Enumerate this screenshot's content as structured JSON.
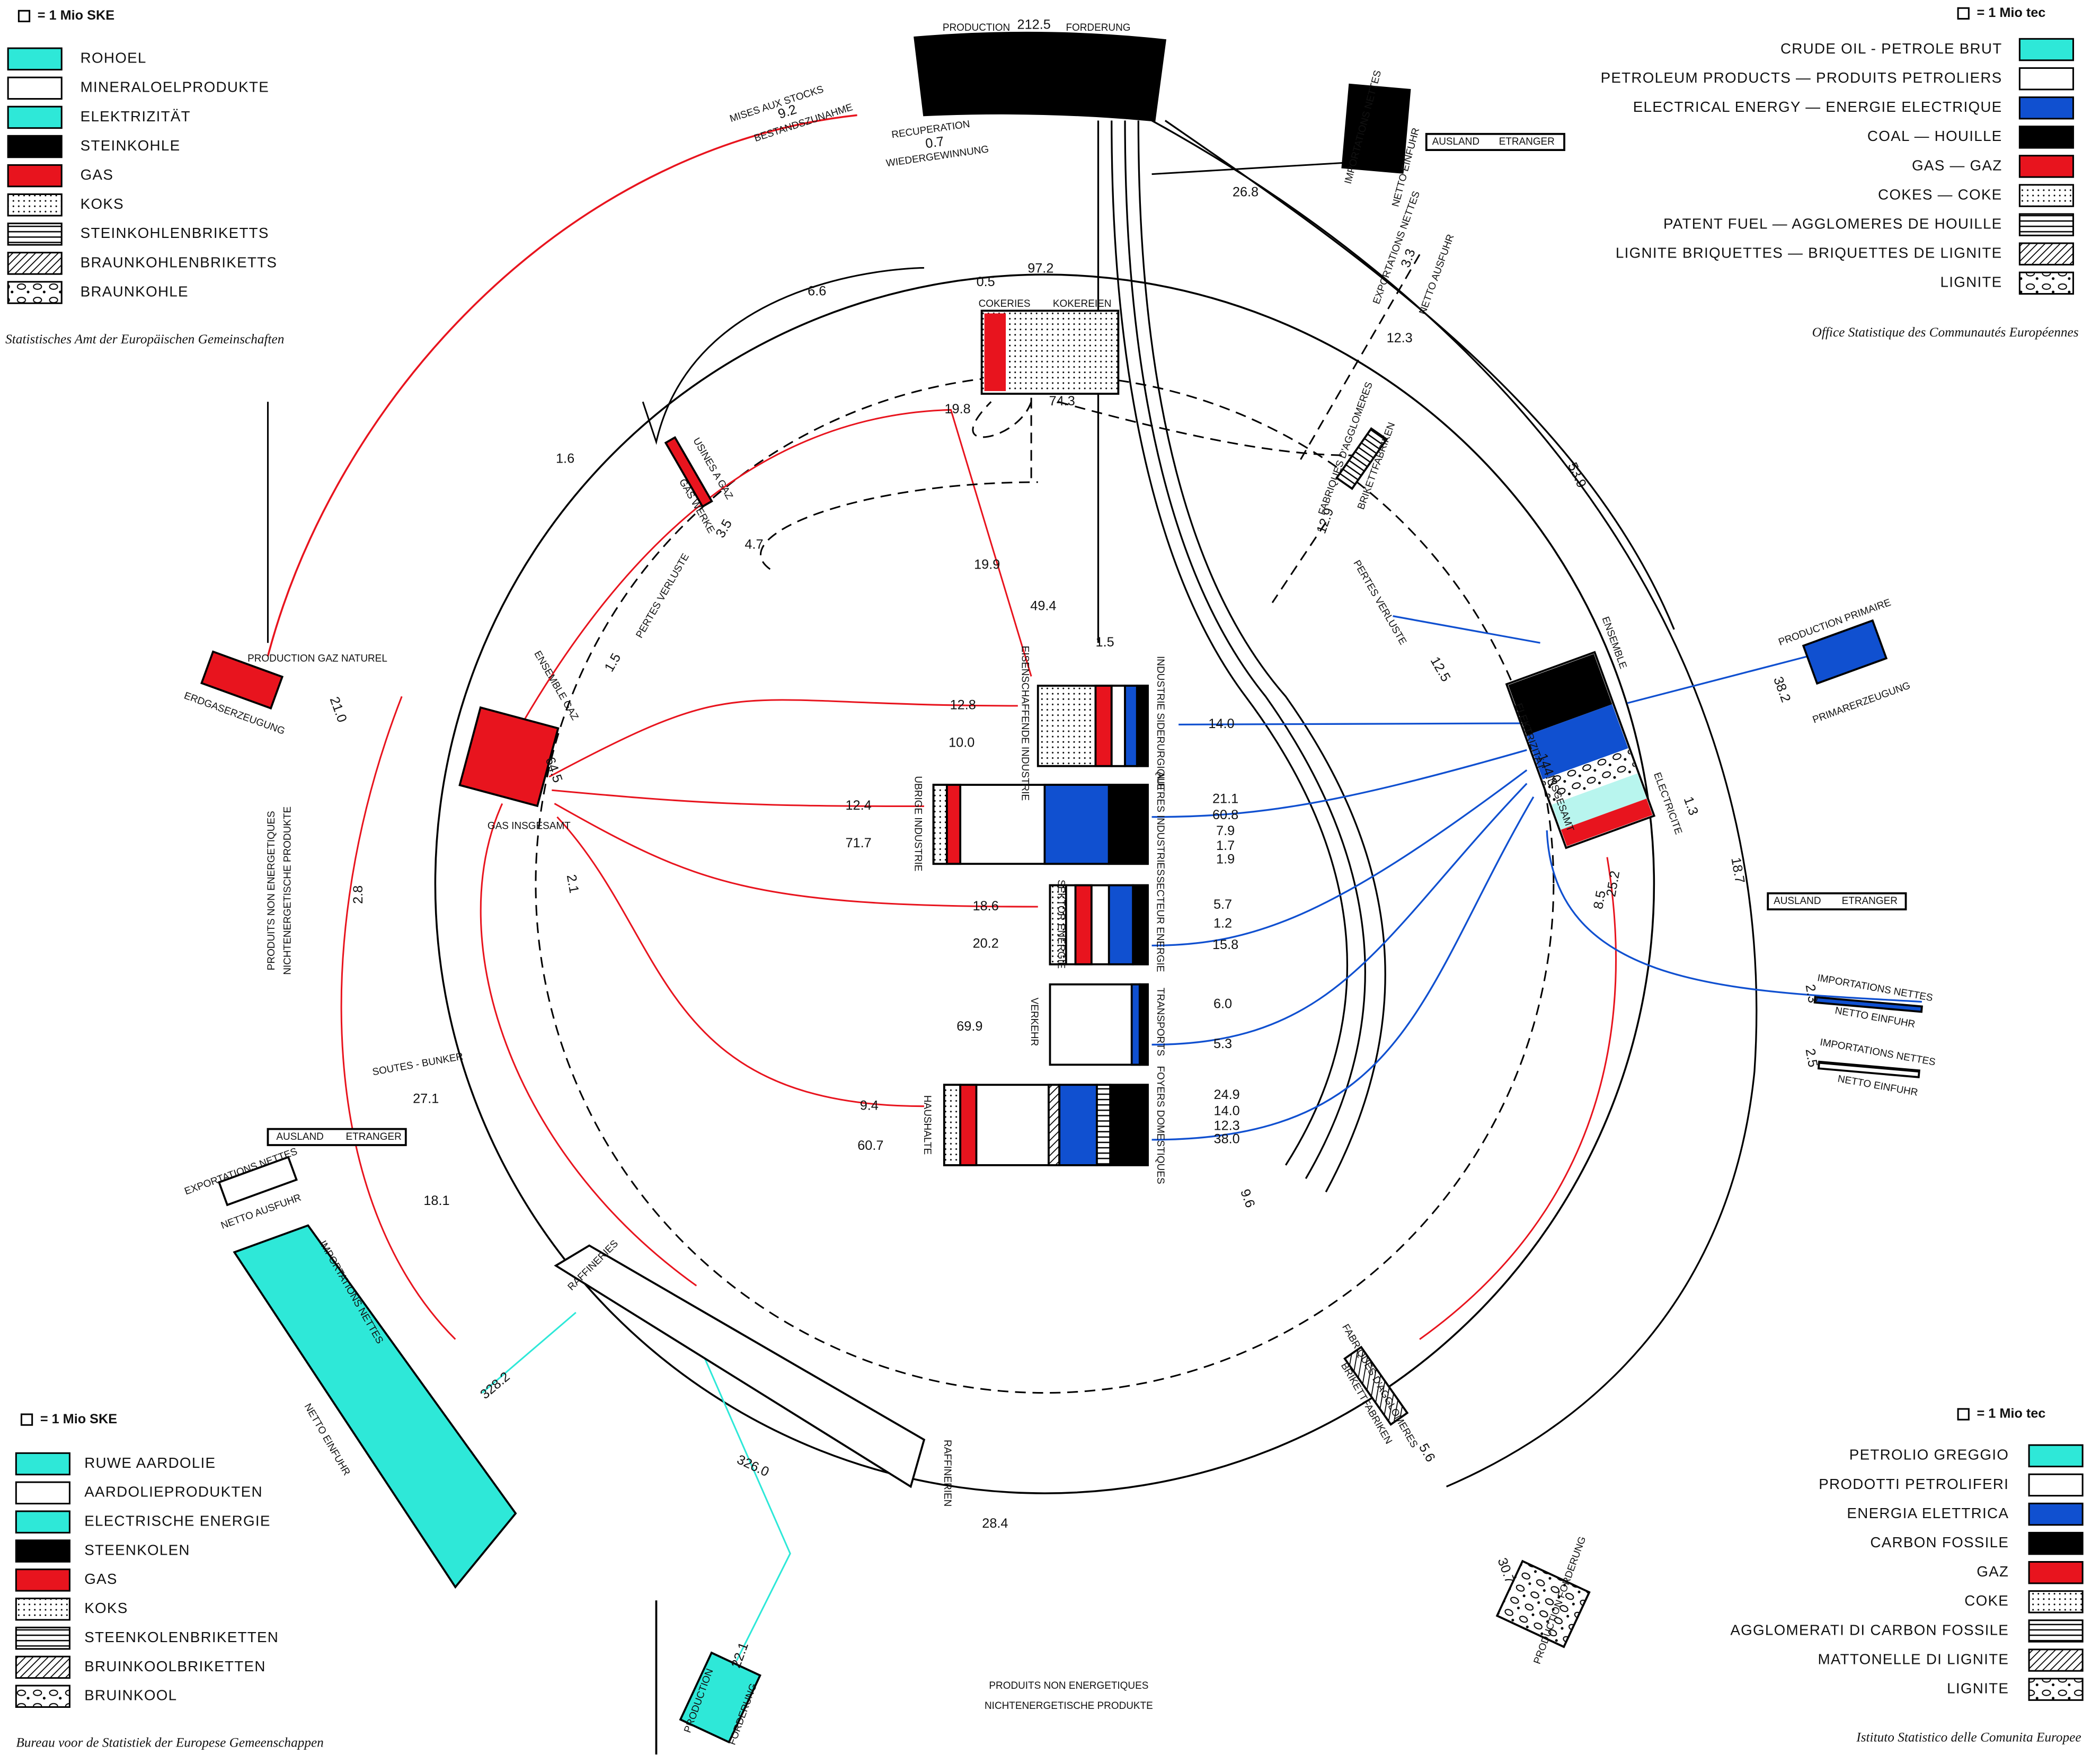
{
  "legends": {
    "de": {
      "unit": "= 1 Mio SKE",
      "items": [
        "ROHOEL",
        "MINERALOELPRODUKTE",
        "ELEKTRIZITÄT",
        "STEINKOHLE",
        "GAS",
        "KOKS",
        "STEINKOHLENBRIKETTS",
        "BRAUNKOHLENBRIKETTS",
        "BRAUNKOHLE"
      ]
    },
    "fr": {
      "unit": "= 1 Mio tec",
      "items": [
        "CRUDE OIL - PETROLE BRUT",
        "PETROLEUM PRODUCTS — PRODUITS PETROLIERS",
        "ELECTRICAL ENERGY — ENERGIE ELECTRIQUE",
        "COAL — HOUILLE",
        "GAS — GAZ",
        "COKES — COKE",
        "PATENT FUEL — AGGLOMERES DE HOUILLE",
        "LIGNITE BRIQUETTES — BRIQUETTES DE LIGNITE",
        "LIGNITE"
      ]
    },
    "nl": {
      "unit": "= 1 Mio SKE",
      "items": [
        "RUWE AARDOLIE",
        "AARDOLIEPRODUKTEN",
        "ELECTRISCHE ENERGIE",
        "STEENKOLEN",
        "GAS",
        "KOKS",
        "STEENKOLENBRIKETTEN",
        "BRUINKOOLBRIKETTEN",
        "BRUINKOOL"
      ]
    },
    "it": {
      "unit": "= 1 Mio tec",
      "items": [
        "PETROLIO GREGGIO",
        "PRODOTTI PETROLIFERI",
        "ENERGIA ELETTRICA",
        "CARBON FOSSILE",
        "GAZ",
        "COKE",
        "AGGLOMERATI DI CARBON FOSSILE",
        "MATTONELLE DI LIGNITE",
        "LIGNITE"
      ]
    }
  },
  "sources": {
    "de": "Statistisches Amt der Europäischen Gemeinschaften",
    "fr": "Office Statistique des Communautés Européennes",
    "nl": "Bureau voor de Statistiek der Europese Gemeenschappen",
    "it": "Istituto Statistico delle Comunita Europee"
  },
  "labels": [
    "PRODUCTION",
    "212.5",
    "FORDERUNG",
    "MISES AUX STOCKS",
    "9.2",
    "BESTANDSZUNAHME",
    "RECUPERATION",
    "0.7",
    "WIEDERGEWINNUNG",
    "IMPORTATIONS NETTES",
    "NETTO EINFUHR",
    "AUSLAND",
    "ETRANGER",
    "26.8",
    "EXPORTATIONS NETTES",
    "3.3",
    "NETTO AUSFUHR",
    "12.3",
    "6.6",
    "0.5",
    "97.2",
    "COKERIES",
    "KOKEREIEN",
    "19.8",
    "74.3",
    "FABRIQUES D'AGGLOMERES",
    "BRIKETTFABRIKEN",
    "12.9",
    "53.9",
    "1.6",
    "USINES A GAZ",
    "GAS WERKE",
    "3.5",
    "4.7",
    "PERTES VERLUSTE",
    "19.9",
    "49.4",
    "1.5",
    "PERTES VERLUSTE",
    "12.5",
    "ENSEMBLE",
    "ELEKTRIZITÄT",
    "144.3",
    "INSGESAMT",
    "ELECTRICITE",
    "1.3",
    "PRODUCTION PRIMAIRE",
    "38.2",
    "PRIMARERZEUGUNG",
    "PRODUCTION GAZ NATUREL",
    "ERDGASERZEUGUNG",
    "21.0",
    "ENSEMBLE GAZ",
    "1.5",
    "64.5",
    "GAS INSGESAMT",
    "2.1",
    "PRODUITS NON ENERGETIQUES",
    "NICHTENERGETISCHE PRODUKTE",
    "2.8",
    "12.8",
    "10.0",
    "EISENSCHAFFENDE INDUSTRIE",
    "INDUSTRIE SIDERURGIQUE",
    "14.0",
    "12.4",
    "71.7",
    "UBRIGE INDUSTRIE",
    "AUTRES INDUSTRIES",
    "21.1",
    "60.8",
    "7.9",
    "1.7",
    "1.9",
    "18.6",
    "20.2",
    "SEKTOR ENERGIE",
    "SECTEUR ENERGIE",
    "5.7",
    "1.2",
    "15.8",
    "69.9",
    "VERKEHR",
    "TRANSPORTS",
    "6.0",
    "5.3",
    "9.4",
    "60.7",
    "HAUSHALTE",
    "FOYERS DOMESTIQUES",
    "24.9",
    "14.0",
    "12.3",
    "38.0",
    "18.7",
    "AUSLAND",
    "ETRANGER",
    "2.3",
    "IMPORTATIONS NETTES",
    "NETTO EINFUHR",
    "25.2",
    "8.5",
    "2.5",
    "IMPORTATIONS NETTES",
    "NETTO EINFUHR",
    "SOUTES - BUNKER",
    "27.1",
    "AUSLAND",
    "ETRANGER",
    "18.1",
    "EXPORTATIONS NETTES",
    "NETTO AUSFUHR",
    "IMPORTATIONS NETTES",
    "NETTO EINFUHR",
    "328.2",
    "RAFFINERIES",
    "326.0",
    "RAFFINERIEN",
    "28.4",
    "9.6",
    "FABRIQUES D'AGGLOMERES",
    "BRIKETTFABRIKEN",
    "5.6",
    "30.7",
    "PRODUCTION FORDERUNG",
    "22.1",
    "PRODUCTION",
    "FORDERUNG",
    "PRODUITS NON ENERGETIQUES",
    "NICHTENERGETISCHE PRODUKTE"
  ]
}
